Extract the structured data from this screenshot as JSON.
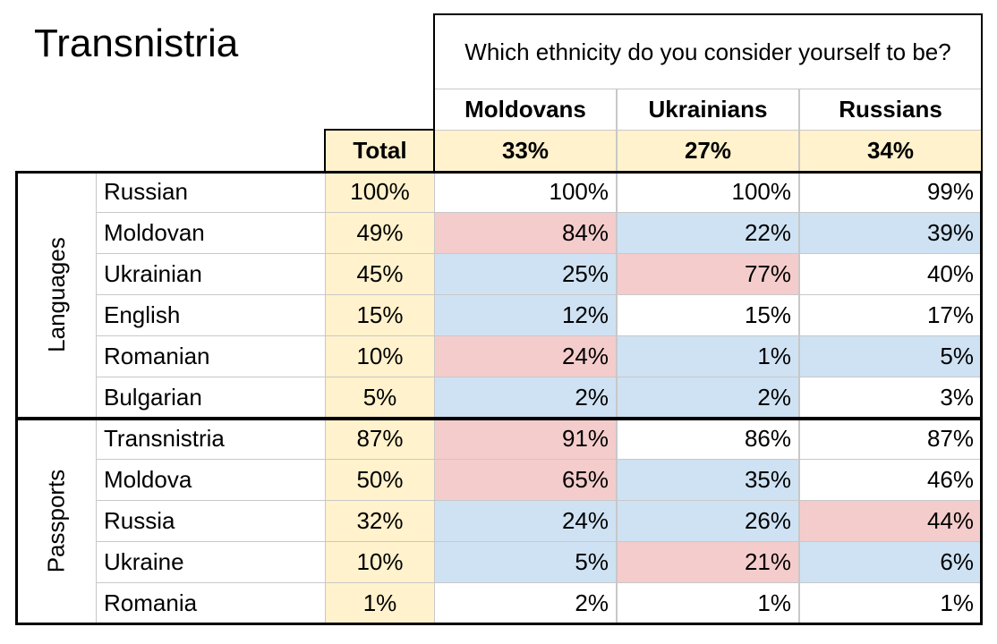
{
  "title": "Transnistria",
  "header": {
    "question": "Which ethnicity do you consider yourself to be?",
    "columns": [
      "Moldovans",
      "Ukrainians",
      "Russians"
    ],
    "total_label": "Total",
    "totals": [
      "33%",
      "27%",
      "34%"
    ]
  },
  "colors": {
    "high": "#f4cccc",
    "low": "#cfe2f3",
    "none": "#ffffff",
    "total": "#fff2cc"
  },
  "groups": [
    {
      "name": "Languages",
      "rows": [
        {
          "label": "Russian",
          "total": "100%",
          "values": [
            "100%",
            "100%",
            "99%"
          ],
          "shades": [
            "none",
            "none",
            "none"
          ]
        },
        {
          "label": "Moldovan",
          "total": "49%",
          "values": [
            "84%",
            "22%",
            "39%"
          ],
          "shades": [
            "high",
            "low",
            "low"
          ]
        },
        {
          "label": "Ukrainian",
          "total": "45%",
          "values": [
            "25%",
            "77%",
            "40%"
          ],
          "shades": [
            "low",
            "high",
            "none"
          ]
        },
        {
          "label": "English",
          "total": "15%",
          "values": [
            "12%",
            "15%",
            "17%"
          ],
          "shades": [
            "low",
            "none",
            "none"
          ]
        },
        {
          "label": "Romanian",
          "total": "10%",
          "values": [
            "24%",
            "1%",
            "5%"
          ],
          "shades": [
            "high",
            "low",
            "low"
          ]
        },
        {
          "label": "Bulgarian",
          "total": "5%",
          "values": [
            "2%",
            "2%",
            "3%"
          ],
          "shades": [
            "low",
            "low",
            "none"
          ]
        }
      ]
    },
    {
      "name": "Passports",
      "rows": [
        {
          "label": "Transnistria",
          "total": "87%",
          "values": [
            "91%",
            "86%",
            "87%"
          ],
          "shades": [
            "high",
            "none",
            "none"
          ]
        },
        {
          "label": "Moldova",
          "total": "50%",
          "values": [
            "65%",
            "35%",
            "46%"
          ],
          "shades": [
            "high",
            "low",
            "none"
          ]
        },
        {
          "label": "Russia",
          "total": "32%",
          "values": [
            "24%",
            "26%",
            "44%"
          ],
          "shades": [
            "low",
            "low",
            "high"
          ]
        },
        {
          "label": "Ukraine",
          "total": "10%",
          "values": [
            "5%",
            "21%",
            "6%"
          ],
          "shades": [
            "low",
            "high",
            "low"
          ]
        },
        {
          "label": "Romania",
          "total": "1%",
          "values": [
            "2%",
            "1%",
            "1%"
          ],
          "shades": [
            "none",
            "none",
            "none"
          ]
        }
      ]
    }
  ]
}
